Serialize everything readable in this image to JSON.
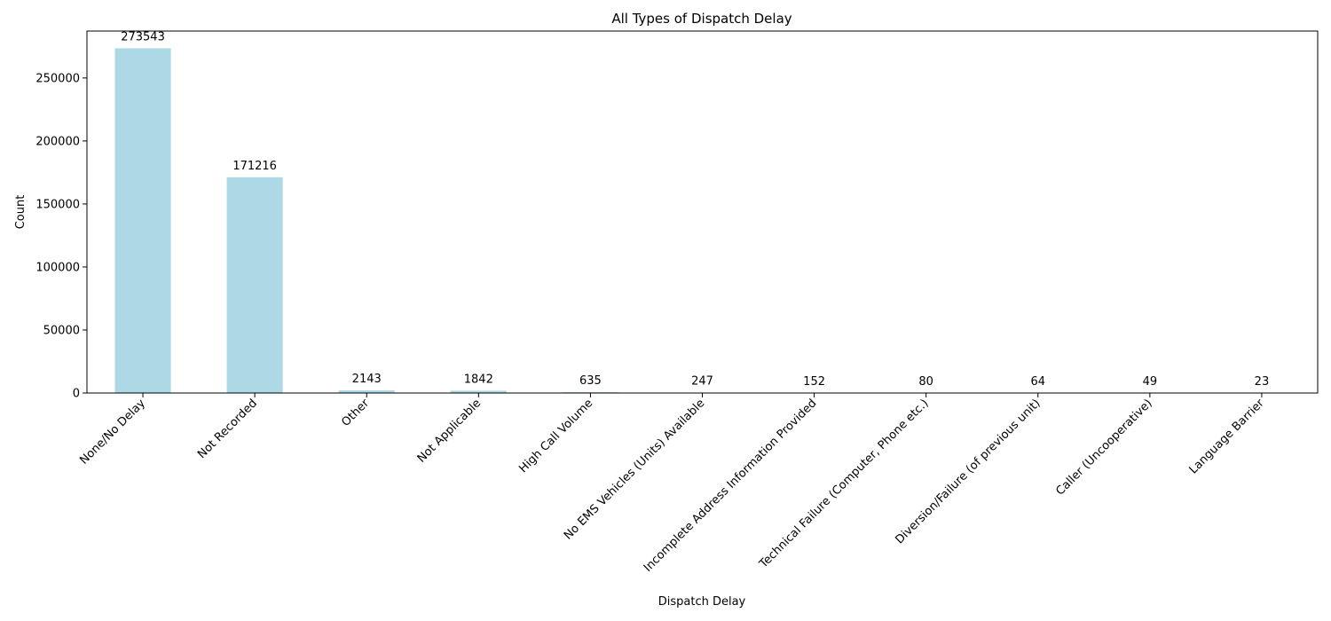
{
  "chart_data": {
    "type": "bar",
    "title": "All Types of Dispatch Delay",
    "xlabel": "Dispatch Delay",
    "ylabel": "Count",
    "categories": [
      "None/No Delay",
      "Not Recorded",
      "Other",
      "Not Applicable",
      "High Call Volume",
      "No EMS Vehicles (Units) Available",
      "Incomplete Address Information Provided",
      "Technical Failure (Computer, Phone etc.)",
      "Diversion/Failure (of previous unit)",
      "Caller (Uncooperative)",
      "Language Barrier"
    ],
    "values": [
      273543,
      171216,
      2143,
      1842,
      635,
      247,
      152,
      80,
      64,
      49,
      23
    ],
    "data_labels": [
      "273543",
      "171216",
      "2143",
      "1842",
      "635",
      "247",
      "152",
      "80",
      "64",
      "49",
      "23"
    ],
    "yticks": [
      0,
      50000,
      100000,
      150000,
      200000,
      250000
    ],
    "ytick_labels": [
      "0",
      "50000",
      "100000",
      "150000",
      "200000",
      "250000"
    ],
    "ylim": [
      0,
      287220
    ],
    "grid": false,
    "legend": "none",
    "bar_color": "#add8e6"
  }
}
